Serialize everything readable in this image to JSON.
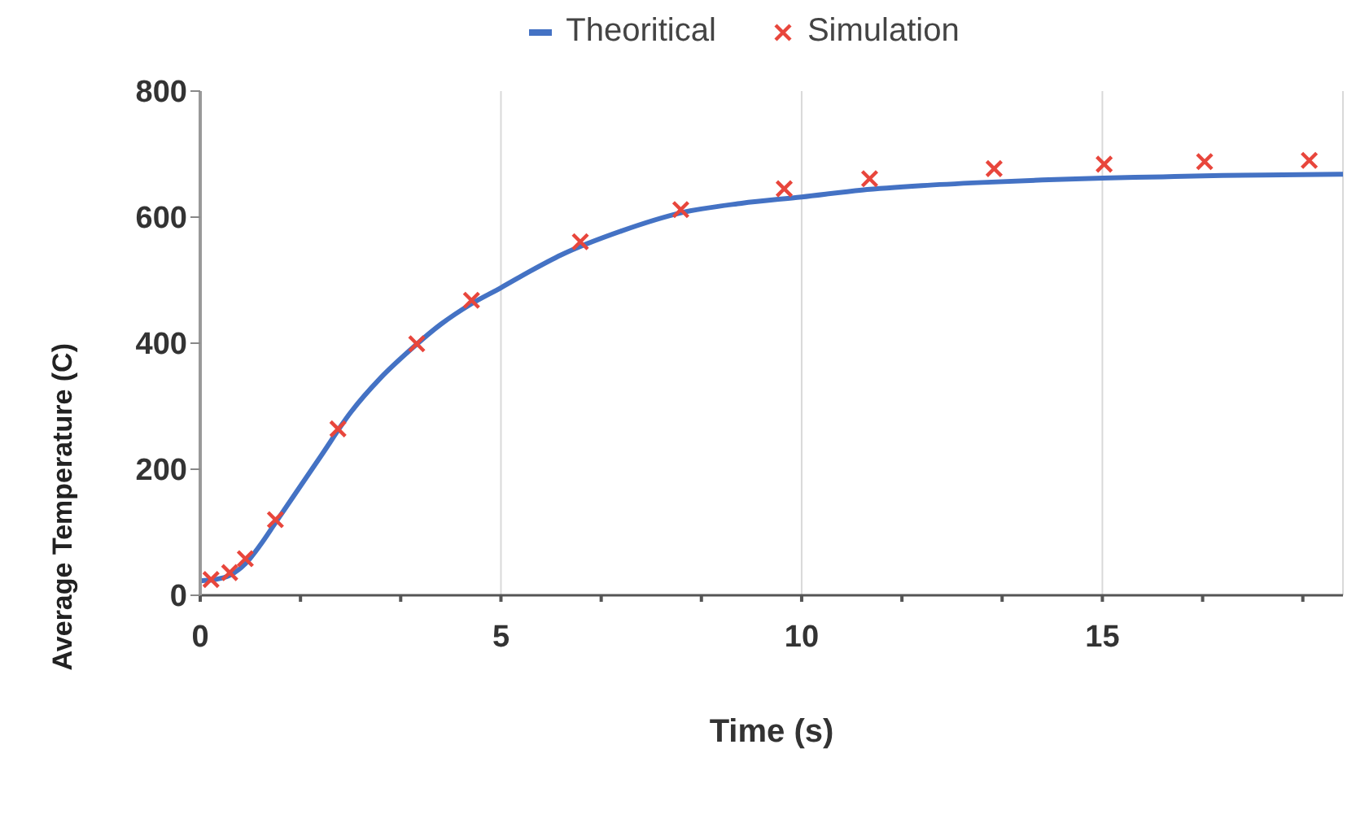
{
  "chart_data": {
    "type": "line",
    "xlabel": "Time (s)",
    "ylabel": "Average Temperature (C)",
    "xlim": [
      0,
      19
    ],
    "ylim": [
      0,
      800
    ],
    "xticks": [
      0,
      {
        "value": 1.667,
        "label": null
      },
      {
        "value": 3.333,
        "label": null
      },
      5,
      {
        "value": 6.667,
        "label": null
      },
      {
        "value": 8.333,
        "label": null
      },
      10,
      {
        "value": 11.667,
        "label": null
      },
      {
        "value": 13.333,
        "label": null
      },
      15,
      {
        "value": 16.667,
        "label": null
      },
      {
        "value": 18.333,
        "label": null
      }
    ],
    "yticks": [
      0,
      200,
      400,
      600,
      800
    ],
    "grid": "x",
    "legend": "top",
    "series": [
      {
        "name": "Theoritical",
        "color": "#4472c4",
        "marker": "none",
        "x": [
          0,
          0.25,
          0.5,
          0.75,
          1,
          1.25,
          1.5,
          2,
          2.5,
          3,
          3.5,
          4,
          4.5,
          5,
          5.5,
          6,
          7,
          8,
          9,
          10,
          11,
          12,
          13,
          14,
          15,
          16,
          17,
          18,
          19
        ],
        "values": [
          23,
          25,
          32,
          50,
          80,
          115,
          150,
          220,
          290,
          345,
          390,
          430,
          462,
          488,
          515,
          540,
          578,
          607,
          622,
          632,
          643,
          650,
          655,
          659,
          662,
          664,
          666,
          667,
          668
        ]
      },
      {
        "name": "Simulation",
        "type": "scatter",
        "color": "#e8463c",
        "marker": "cross",
        "x": [
          0.18,
          0.49,
          0.75,
          1.25,
          2.29,
          3.6,
          4.51,
          6.32,
          7.99,
          9.71,
          11.13,
          13.2,
          15.03,
          16.7,
          18.44
        ],
        "values": [
          25,
          36,
          58,
          120,
          264,
          399,
          468,
          561,
          612,
          645,
          661,
          677,
          684,
          688,
          690
        ]
      }
    ]
  }
}
